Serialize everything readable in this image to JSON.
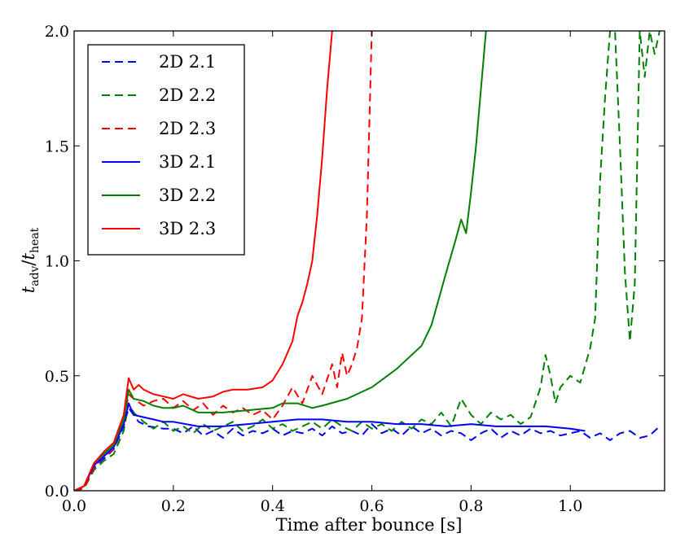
{
  "chart_data": {
    "type": "line",
    "xlabel": "Time after bounce [s]",
    "ylabel": {
      "base1": "t",
      "sub1": "adv",
      "sep": "/",
      "base2": "t",
      "sub2": "heat"
    },
    "xlim": [
      0,
      1.19
    ],
    "ylim": [
      0,
      2.0
    ],
    "xticks": [
      0.0,
      0.2,
      0.4,
      0.6,
      0.8,
      1.0
    ],
    "xtick_labels": [
      "0.0",
      "0.2",
      "0.4",
      "0.6",
      "0.8",
      "1.0"
    ],
    "yticks": [
      0.0,
      0.5,
      1.0,
      1.5,
      2.0
    ],
    "ytick_labels": [
      "0.0",
      "0.5",
      "1.0",
      "1.5",
      "2.0"
    ],
    "grid": false,
    "legend_position": "upper-left",
    "series": [
      {
        "name": "2D 2.1",
        "color": "#0000ff",
        "style": "dashed",
        "x": [
          0.0,
          0.02,
          0.04,
          0.06,
          0.08,
          0.1,
          0.11,
          0.12,
          0.13,
          0.15,
          0.18,
          0.2,
          0.22,
          0.24,
          0.26,
          0.28,
          0.3,
          0.32,
          0.34,
          0.36,
          0.38,
          0.4,
          0.42,
          0.44,
          0.46,
          0.48,
          0.5,
          0.52,
          0.54,
          0.56,
          0.58,
          0.6,
          0.62,
          0.64,
          0.66,
          0.68,
          0.7,
          0.72,
          0.74,
          0.76,
          0.78,
          0.8,
          0.82,
          0.84,
          0.86,
          0.88,
          0.9,
          0.92,
          0.94,
          0.96,
          0.98,
          1.0,
          1.02,
          1.04,
          1.06,
          1.08,
          1.1,
          1.12,
          1.14,
          1.16,
          1.18
        ],
        "y": [
          0.0,
          0.02,
          0.1,
          0.14,
          0.18,
          0.28,
          0.36,
          0.33,
          0.3,
          0.28,
          0.27,
          0.27,
          0.25,
          0.28,
          0.24,
          0.26,
          0.23,
          0.27,
          0.24,
          0.26,
          0.25,
          0.27,
          0.24,
          0.26,
          0.25,
          0.27,
          0.24,
          0.28,
          0.25,
          0.26,
          0.24,
          0.29,
          0.25,
          0.27,
          0.24,
          0.28,
          0.25,
          0.27,
          0.24,
          0.26,
          0.25,
          0.22,
          0.25,
          0.27,
          0.23,
          0.26,
          0.24,
          0.27,
          0.25,
          0.26,
          0.24,
          0.25,
          0.26,
          0.23,
          0.25,
          0.22,
          0.25,
          0.26,
          0.23,
          0.24,
          0.28
        ]
      },
      {
        "name": "2D 2.2",
        "color": "#008000",
        "style": "dashed",
        "x": [
          0.0,
          0.02,
          0.04,
          0.06,
          0.08,
          0.1,
          0.11,
          0.12,
          0.14,
          0.16,
          0.18,
          0.2,
          0.22,
          0.24,
          0.26,
          0.28,
          0.3,
          0.32,
          0.34,
          0.36,
          0.38,
          0.4,
          0.42,
          0.44,
          0.46,
          0.48,
          0.5,
          0.52,
          0.54,
          0.56,
          0.58,
          0.6,
          0.62,
          0.64,
          0.66,
          0.68,
          0.7,
          0.72,
          0.74,
          0.76,
          0.78,
          0.8,
          0.82,
          0.84,
          0.86,
          0.88,
          0.9,
          0.92,
          0.94,
          0.95,
          0.96,
          0.97,
          0.98,
          1.0,
          1.02,
          1.04,
          1.05,
          1.06,
          1.07,
          1.08,
          1.09,
          1.1,
          1.11,
          1.12,
          1.13,
          1.14,
          1.15,
          1.16,
          1.17,
          1.18
        ],
        "y": [
          0.0,
          0.01,
          0.09,
          0.13,
          0.16,
          0.26,
          0.38,
          0.34,
          0.3,
          0.27,
          0.3,
          0.26,
          0.28,
          0.25,
          0.29,
          0.26,
          0.28,
          0.3,
          0.26,
          0.28,
          0.31,
          0.27,
          0.29,
          0.26,
          0.28,
          0.3,
          0.27,
          0.31,
          0.28,
          0.26,
          0.3,
          0.27,
          0.29,
          0.26,
          0.3,
          0.27,
          0.31,
          0.29,
          0.34,
          0.28,
          0.4,
          0.33,
          0.29,
          0.34,
          0.31,
          0.33,
          0.29,
          0.32,
          0.45,
          0.59,
          0.5,
          0.38,
          0.45,
          0.5,
          0.47,
          0.62,
          0.75,
          1.35,
          1.71,
          2.0,
          2.0,
          1.5,
          0.95,
          0.65,
          0.9,
          2.0,
          1.8,
          2.0,
          1.9,
          2.0
        ]
      },
      {
        "name": "2D 2.3",
        "color": "#ff0000",
        "style": "dashed",
        "x": [
          0.0,
          0.02,
          0.04,
          0.06,
          0.08,
          0.1,
          0.11,
          0.12,
          0.14,
          0.16,
          0.18,
          0.2,
          0.22,
          0.24,
          0.26,
          0.28,
          0.3,
          0.32,
          0.34,
          0.36,
          0.38,
          0.4,
          0.42,
          0.44,
          0.46,
          0.48,
          0.5,
          0.52,
          0.53,
          0.54,
          0.55,
          0.56,
          0.57,
          0.58,
          0.59,
          0.6
        ],
        "y": [
          0.0,
          0.01,
          0.1,
          0.15,
          0.18,
          0.3,
          0.42,
          0.4,
          0.37,
          0.39,
          0.4,
          0.36,
          0.39,
          0.35,
          0.38,
          0.33,
          0.37,
          0.34,
          0.36,
          0.33,
          0.35,
          0.31,
          0.37,
          0.45,
          0.38,
          0.5,
          0.42,
          0.55,
          0.45,
          0.6,
          0.5,
          0.55,
          0.62,
          0.75,
          1.2,
          2.0
        ]
      },
      {
        "name": "3D 2.1",
        "color": "#0000ff",
        "style": "solid",
        "x": [
          0.0,
          0.02,
          0.04,
          0.06,
          0.08,
          0.1,
          0.11,
          0.12,
          0.14,
          0.16,
          0.18,
          0.2,
          0.25,
          0.3,
          0.35,
          0.4,
          0.45,
          0.5,
          0.55,
          0.6,
          0.65,
          0.7,
          0.75,
          0.8,
          0.85,
          0.9,
          0.95,
          1.0,
          1.03
        ],
        "y": [
          0.0,
          0.02,
          0.11,
          0.15,
          0.19,
          0.29,
          0.38,
          0.33,
          0.32,
          0.31,
          0.3,
          0.3,
          0.28,
          0.28,
          0.29,
          0.3,
          0.31,
          0.31,
          0.3,
          0.3,
          0.29,
          0.29,
          0.28,
          0.29,
          0.28,
          0.28,
          0.28,
          0.27,
          0.26
        ]
      },
      {
        "name": "3D 2.2",
        "color": "#008000",
        "style": "solid",
        "x": [
          0.0,
          0.02,
          0.04,
          0.06,
          0.08,
          0.1,
          0.11,
          0.12,
          0.14,
          0.16,
          0.18,
          0.2,
          0.22,
          0.25,
          0.3,
          0.35,
          0.4,
          0.42,
          0.45,
          0.48,
          0.5,
          0.55,
          0.6,
          0.65,
          0.7,
          0.72,
          0.75,
          0.77,
          0.78,
          0.79,
          0.8,
          0.81,
          0.82,
          0.83
        ],
        "y": [
          0.0,
          0.02,
          0.12,
          0.16,
          0.2,
          0.31,
          0.44,
          0.4,
          0.39,
          0.37,
          0.36,
          0.36,
          0.37,
          0.34,
          0.34,
          0.35,
          0.36,
          0.38,
          0.38,
          0.36,
          0.37,
          0.4,
          0.45,
          0.53,
          0.63,
          0.72,
          0.95,
          1.1,
          1.18,
          1.12,
          1.3,
          1.5,
          1.75,
          2.0
        ]
      },
      {
        "name": "3D 2.3",
        "color": "#ff0000",
        "style": "solid",
        "x": [
          0.0,
          0.02,
          0.04,
          0.06,
          0.08,
          0.1,
          0.11,
          0.12,
          0.13,
          0.14,
          0.16,
          0.18,
          0.2,
          0.22,
          0.25,
          0.28,
          0.3,
          0.32,
          0.35,
          0.38,
          0.4,
          0.42,
          0.44,
          0.45,
          0.46,
          0.47,
          0.48,
          0.49,
          0.5,
          0.51,
          0.52
        ],
        "y": [
          0.0,
          0.02,
          0.12,
          0.17,
          0.21,
          0.33,
          0.49,
          0.44,
          0.46,
          0.44,
          0.42,
          0.41,
          0.4,
          0.42,
          0.4,
          0.41,
          0.43,
          0.44,
          0.44,
          0.45,
          0.48,
          0.55,
          0.65,
          0.76,
          0.82,
          0.9,
          1.0,
          1.2,
          1.45,
          1.75,
          2.0
        ]
      }
    ]
  }
}
